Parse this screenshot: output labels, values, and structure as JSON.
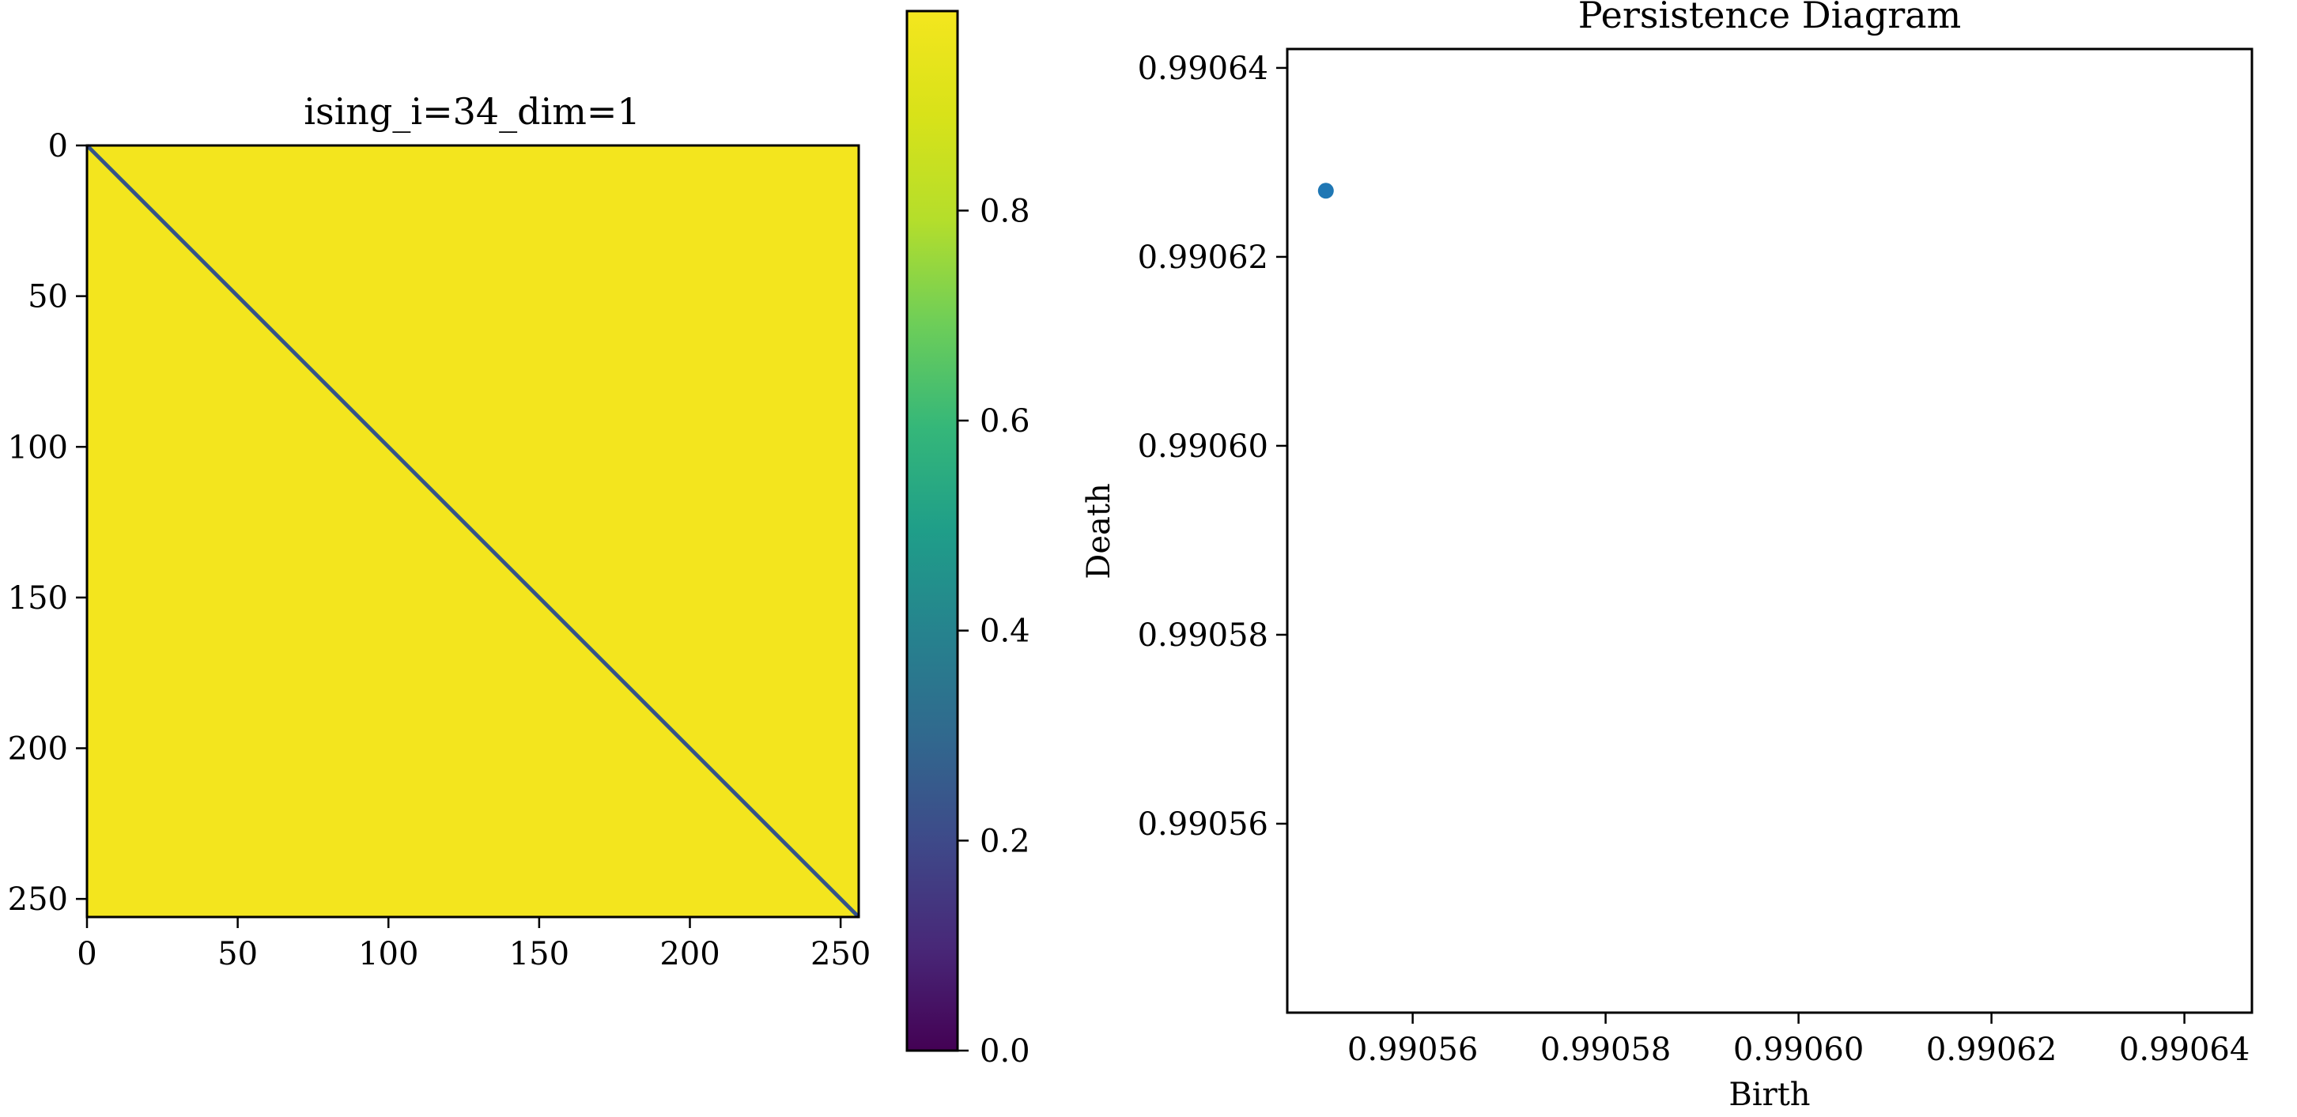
{
  "chart_data": [
    {
      "type": "heatmap",
      "title": "ising_i=34_dim=1",
      "matrix_size": 256,
      "description_values": {
        "diagonal_value": 0.3,
        "off_diagonal_value": 1.0
      },
      "x_ticks": [
        0,
        50,
        100,
        150,
        200,
        250
      ],
      "y_ticks": [
        0,
        50,
        100,
        150,
        200,
        250
      ],
      "xlim": [
        0,
        256
      ],
      "ylim": [
        256,
        0
      ],
      "colormap": "viridis",
      "colorbar": {
        "range": [
          0.0,
          0.99
        ],
        "ticks": [
          0.0,
          0.2,
          0.4,
          0.6,
          0.8
        ],
        "tick_labels": [
          "0.0",
          "0.2",
          "0.4",
          "0.6",
          "0.8"
        ]
      }
    },
    {
      "type": "scatter",
      "title": "Persistence Diagram",
      "xlabel": "Birth",
      "ylabel": "Death",
      "xlim": [
        0.990547,
        0.990647
      ],
      "ylim": [
        0.99054,
        0.990642
      ],
      "x_ticks": [
        0.99056,
        0.99058,
        0.9906,
        0.99062,
        0.99064
      ],
      "x_tick_labels": [
        "0.99056",
        "0.99058",
        "0.99060",
        "0.99062",
        "0.99064"
      ],
      "y_ticks": [
        0.99056,
        0.99058,
        0.9906,
        0.99062,
        0.99064
      ],
      "y_tick_labels": [
        "0.99056",
        "0.99058",
        "0.99060",
        "0.99062",
        "0.99064"
      ],
      "series": [
        {
          "color": "#1f77b4",
          "points": [
            [
              0.990551,
              0.990627
            ]
          ]
        }
      ]
    }
  ]
}
